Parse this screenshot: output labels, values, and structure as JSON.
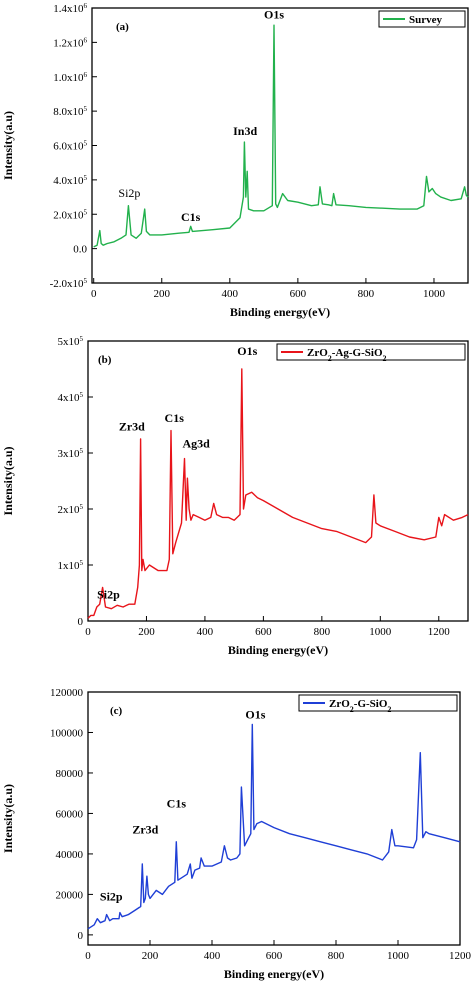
{
  "chart_data": [
    {
      "type": "line",
      "panel_label": "(a)",
      "xlabel": "Binding energy(eV)",
      "ylabel": "Intensity(a.u)",
      "xlim": [
        -5,
        1100
      ],
      "ylim": [
        -200000,
        1400000
      ],
      "xticks": [
        {
          "v": 0,
          "label": "0"
        },
        {
          "v": 200,
          "label": "200"
        },
        {
          "v": 400,
          "label": "400"
        },
        {
          "v": 600,
          "label": "600"
        },
        {
          "v": 800,
          "label": "800"
        },
        {
          "v": 1000,
          "label": "1000"
        }
      ],
      "yticks": [
        {
          "v": -200000,
          "m": "-2.0x10",
          "e": "5"
        },
        {
          "v": 0,
          "m": "0.0",
          "e": ""
        },
        {
          "v": 200000,
          "m": "2.0x10",
          "e": "5"
        },
        {
          "v": 400000,
          "m": "4.0x10",
          "e": "5"
        },
        {
          "v": 600000,
          "m": "6.0x10",
          "e": "5"
        },
        {
          "v": 800000,
          "m": "8.0x10",
          "e": "5"
        },
        {
          "v": 1000000,
          "m": "1.0x10",
          "e": "6"
        },
        {
          "v": 1200000,
          "m": "1.2x10",
          "e": "6"
        },
        {
          "v": 1400000,
          "m": "1.4x10",
          "e": "6"
        }
      ],
      "legend": {
        "label": "Survey",
        "position": "top-right"
      },
      "color": "#22b14c",
      "annotations": [
        {
          "text": "O1s",
          "x": 530,
          "y": 1340000,
          "bold": true
        },
        {
          "text": "In3d",
          "x": 445,
          "y": 660000,
          "bold": true
        },
        {
          "text": "Si2p",
          "x": 105,
          "y": 300000,
          "bold": false
        },
        {
          "text": "C1s",
          "x": 285,
          "y": 160000,
          "bold": true
        }
      ],
      "series": [
        {
          "x": [
            0,
            10,
            18,
            22,
            28,
            40,
            60,
            80,
            95,
            102,
            110,
            125,
            140,
            150,
            155,
            165,
            200,
            250,
            280,
            285,
            290,
            350,
            400,
            430,
            440,
            443,
            447,
            451,
            455,
            470,
            500,
            525,
            530,
            535,
            540,
            555,
            570,
            600,
            640,
            660,
            665,
            672,
            690,
            700,
            705,
            712,
            750,
            800,
            850,
            900,
            950,
            970,
            978,
            985,
            995,
            1005,
            1020,
            1050,
            1080,
            1090,
            1095,
            1100
          ],
          "y": [
            10000,
            20000,
            105000,
            30000,
            20000,
            30000,
            40000,
            60000,
            80000,
            250000,
            80000,
            60000,
            90000,
            230000,
            100000,
            80000,
            80000,
            90000,
            95000,
            130000,
            100000,
            110000,
            120000,
            180000,
            300000,
            620000,
            300000,
            450000,
            230000,
            220000,
            220000,
            250000,
            1300000,
            260000,
            240000,
            320000,
            280000,
            270000,
            250000,
            255000,
            360000,
            260000,
            255000,
            250000,
            320000,
            255000,
            250000,
            240000,
            235000,
            230000,
            230000,
            250000,
            420000,
            330000,
            350000,
            320000,
            300000,
            280000,
            290000,
            360000,
            310000,
            300000
          ]
        }
      ]
    },
    {
      "type": "line",
      "panel_label": "(b)",
      "xlabel": "Binding energy(eV)",
      "ylabel": "Intensity(a.u)",
      "xlim": [
        0,
        1300
      ],
      "ylim": [
        0,
        500000
      ],
      "xticks": [
        {
          "v": 0,
          "label": "0"
        },
        {
          "v": 200,
          "label": "200"
        },
        {
          "v": 400,
          "label": "400"
        },
        {
          "v": 600,
          "label": "600"
        },
        {
          "v": 800,
          "label": "800"
        },
        {
          "v": 1000,
          "label": "1000"
        },
        {
          "v": 1200,
          "label": "1200"
        }
      ],
      "yticks": [
        {
          "v": 0,
          "m": "0",
          "e": ""
        },
        {
          "v": 100000,
          "m": "1x10",
          "e": "5"
        },
        {
          "v": 200000,
          "m": "2x10",
          "e": "5"
        },
        {
          "v": 300000,
          "m": "3x10",
          "e": "5"
        },
        {
          "v": 400000,
          "m": "4x10",
          "e": "5"
        },
        {
          "v": 500000,
          "m": "5x10",
          "e": "5"
        }
      ],
      "legend": {
        "label": "ZrO2-Ag-G-SiO2",
        "position": "top-right"
      },
      "color": "#e8141a",
      "annotations": [
        {
          "text": "O1s",
          "x": 545,
          "y": 475000,
          "bold": true
        },
        {
          "text": "Zr3d",
          "x": 150,
          "y": 340000,
          "bold": true
        },
        {
          "text": "C1s",
          "x": 295,
          "y": 355000,
          "bold": true
        },
        {
          "text": "Ag3d",
          "x": 370,
          "y": 310000,
          "bold": true
        },
        {
          "text": "Si2p",
          "x": 70,
          "y": 40000,
          "bold": true
        }
      ],
      "series": [
        {
          "x": [
            0,
            10,
            20,
            30,
            40,
            50,
            60,
            80,
            100,
            120,
            140,
            160,
            170,
            176,
            180,
            184,
            188,
            195,
            210,
            240,
            270,
            278,
            284,
            290,
            300,
            320,
            330,
            336,
            340,
            346,
            352,
            360,
            380,
            400,
            420,
            430,
            440,
            460,
            480,
            500,
            520,
            526,
            532,
            540,
            560,
            580,
            600,
            650,
            700,
            750,
            800,
            850,
            900,
            950,
            970,
            978,
            985,
            1000,
            1050,
            1100,
            1150,
            1190,
            1200,
            1210,
            1220,
            1250,
            1280,
            1300
          ],
          "y": [
            5000,
            10000,
            10000,
            25000,
            30000,
            60000,
            25000,
            22000,
            28000,
            25000,
            30000,
            30000,
            60000,
            100000,
            325000,
            90000,
            110000,
            90000,
            100000,
            90000,
            90000,
            110000,
            340000,
            120000,
            140000,
            175000,
            290000,
            180000,
            255000,
            200000,
            180000,
            190000,
            185000,
            180000,
            185000,
            210000,
            190000,
            185000,
            185000,
            180000,
            190000,
            450000,
            200000,
            225000,
            230000,
            220000,
            215000,
            200000,
            185000,
            175000,
            165000,
            160000,
            150000,
            140000,
            150000,
            225000,
            175000,
            170000,
            160000,
            150000,
            145000,
            150000,
            185000,
            170000,
            190000,
            180000,
            185000,
            190000
          ]
        }
      ]
    },
    {
      "type": "line",
      "panel_label": "(c)",
      "xlabel": "Binding energy(eV)",
      "ylabel": "Intensity(a.u)",
      "xlim": [
        0,
        1200
      ],
      "ylim": [
        -5000,
        120000
      ],
      "xticks": [
        {
          "v": 0,
          "label": "0"
        },
        {
          "v": 200,
          "label": "200"
        },
        {
          "v": 400,
          "label": "400"
        },
        {
          "v": 600,
          "label": "600"
        },
        {
          "v": 800,
          "label": "800"
        },
        {
          "v": 1000,
          "label": "1000"
        },
        {
          "v": 1200,
          "label": "1200"
        }
      ],
      "yticks": [
        {
          "v": 0,
          "m": "0",
          "e": ""
        },
        {
          "v": 20000,
          "m": "20000",
          "e": ""
        },
        {
          "v": 40000,
          "m": "40000",
          "e": ""
        },
        {
          "v": 60000,
          "m": "60000",
          "e": ""
        },
        {
          "v": 80000,
          "m": "80000",
          "e": ""
        },
        {
          "v": 100000,
          "m": "100000",
          "e": ""
        },
        {
          "v": 120000,
          "m": "120000",
          "e": ""
        }
      ],
      "legend": {
        "label": "ZrO2-G-SiO2",
        "position": "top-right"
      },
      "color": "#1f3fd6",
      "annotations": [
        {
          "text": "O1s",
          "x": 540,
          "y": 107000,
          "bold": true
        },
        {
          "text": "Zr3d",
          "x": 185,
          "y": 50000,
          "bold": true
        },
        {
          "text": "C1s",
          "x": 285,
          "y": 63000,
          "bold": true
        },
        {
          "text": "Si2p",
          "x": 75,
          "y": 17000,
          "bold": true
        }
      ],
      "series": [
        {
          "x": [
            0,
            20,
            30,
            40,
            55,
            60,
            70,
            80,
            100,
            103,
            110,
            130,
            150,
            170,
            175,
            180,
            185,
            190,
            195,
            200,
            220,
            240,
            260,
            280,
            285,
            290,
            300,
            320,
            330,
            335,
            345,
            360,
            365,
            375,
            400,
            430,
            440,
            450,
            460,
            480,
            490,
            495,
            505,
            515,
            525,
            530,
            535,
            545,
            560,
            600,
            650,
            700,
            750,
            800,
            850,
            900,
            950,
            970,
            980,
            990,
            1000,
            1050,
            1060,
            1072,
            1080,
            1090,
            1100,
            1150,
            1200
          ],
          "y": [
            3000,
            5000,
            8000,
            6000,
            7000,
            10000,
            7000,
            8000,
            8000,
            11000,
            9000,
            10000,
            12000,
            14000,
            35000,
            16000,
            18000,
            29000,
            20000,
            18000,
            22000,
            20000,
            24000,
            26000,
            46000,
            27000,
            28000,
            30000,
            35000,
            28000,
            32000,
            33000,
            38000,
            34000,
            34000,
            36000,
            44000,
            38000,
            37000,
            38000,
            40000,
            73000,
            44000,
            47000,
            50000,
            104000,
            52000,
            55000,
            56000,
            53000,
            50000,
            48000,
            46000,
            44000,
            42000,
            40000,
            37000,
            41000,
            52000,
            44000,
            44000,
            43000,
            47000,
            90000,
            48000,
            51000,
            50000,
            48000,
            46000
          ]
        }
      ]
    }
  ]
}
